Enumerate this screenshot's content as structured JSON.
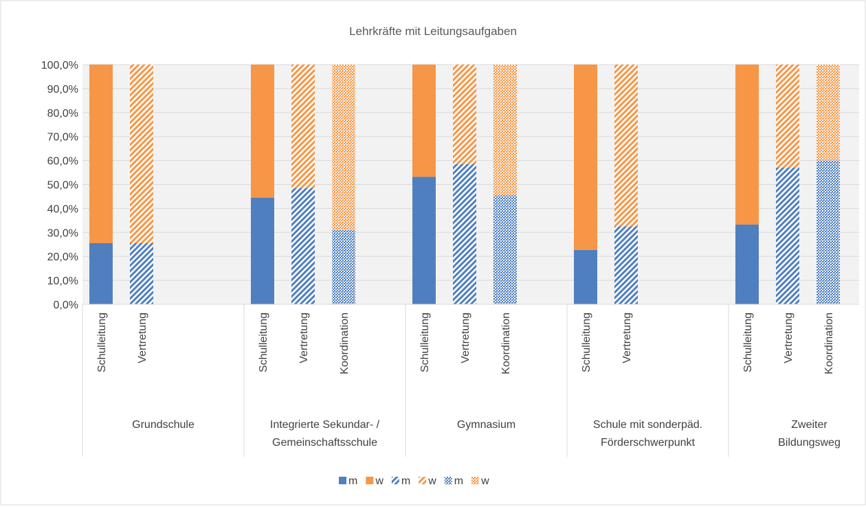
{
  "chart_data": {
    "type": "stacked_bar",
    "title": "Lehrkräfte mit Leitungsaufgaben",
    "groups": [
      [
        "Grundschule"
      ],
      [
        "Integrierte Sekundar- /",
        "Gemeinschaftsschule"
      ],
      [
        "Gymnasium"
      ],
      [
        "Schule mit sonderpäd.",
        "Förderschwerpunkt"
      ],
      [
        "Zweiter",
        "Bildungsweg"
      ]
    ],
    "stacks": [
      {
        "label": "Schulleitung",
        "pattern": "solid",
        "series": [
          {
            "name": "m",
            "color": "#4f7fbf",
            "values": [
              25.5,
              44.5,
              53.2,
              22.7,
              33.3
            ]
          },
          {
            "name": "w",
            "color": "#f79646",
            "values": [
              74.5,
              55.5,
              46.8,
              77.3,
              66.7
            ]
          }
        ]
      },
      {
        "label": "Vertretung",
        "pattern": "stripes",
        "series": [
          {
            "name": "m",
            "color": "#4f7fbf",
            "values": [
              25.5,
              48.5,
              58.5,
              32.5,
              57
            ]
          },
          {
            "name": "w",
            "color": "#f79646",
            "values": [
              74.5,
              51.5,
              41.5,
              67.5,
              43
            ]
          }
        ]
      },
      {
        "label": "Koordination",
        "pattern": "dots",
        "series": [
          {
            "name": "m",
            "color": "#4f7fbf",
            "values": [
              null,
              31,
              45.5,
              null,
              60
            ]
          },
          {
            "name": "w",
            "color": "#f79646",
            "values": [
              null,
              69,
              54.5,
              null,
              40
            ]
          }
        ]
      }
    ],
    "ylim": [
      0,
      100
    ],
    "yticks": [
      {
        "value": 0,
        "label": "0,0%"
      },
      {
        "value": 10,
        "label": "10,0%"
      },
      {
        "value": 20,
        "label": "20,0%"
      },
      {
        "value": 30,
        "label": "30,0%"
      },
      {
        "value": 40,
        "label": "40,0%"
      },
      {
        "value": 50,
        "label": "50,0%"
      },
      {
        "value": 60,
        "label": "60,0%"
      },
      {
        "value": 70,
        "label": "70,0%"
      },
      {
        "value": 80,
        "label": "80,0%"
      },
      {
        "value": 90,
        "label": "90,0%"
      },
      {
        "value": 100,
        "label": "100,0%"
      }
    ],
    "grid": true
  }
}
